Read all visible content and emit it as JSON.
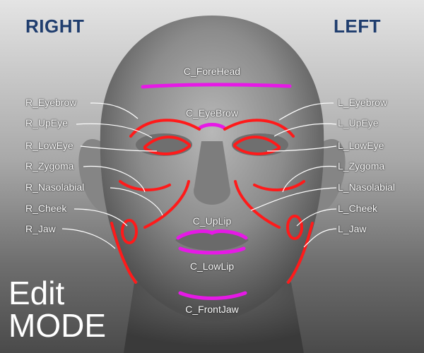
{
  "header": {
    "right": "RIGHT",
    "left": "LEFT"
  },
  "mode": {
    "line1": "Edit",
    "line2": "MODE"
  },
  "labels": {
    "r_eyebrow": "R_Eyebrow",
    "r_upeye": "R_UpEye",
    "r_loweye": "R_LowEye",
    "r_zygoma": "R_Zygoma",
    "r_nasolabial": "R_Nasolabial",
    "r_cheek": "R_Cheek",
    "r_jaw": "R_Jaw",
    "l_eyebrow": "L_Eyebrow",
    "l_upeye": "L_UpEye",
    "l_loweye": "L_LowEye",
    "l_zygoma": "L_Zygoma",
    "l_nasolabial": "L_Nasolabial",
    "l_cheek": "L_Cheek",
    "l_jaw": "L_Jaw",
    "c_forehead": "C_ForeHead",
    "c_eyebrow": "C_EyeBrow",
    "c_uplip": "C_UpLip",
    "c_lowlip": "C_LowLip",
    "c_frontjaw": "C_FrontJaw"
  },
  "colors": {
    "side_controls": "#ff1a1a",
    "center_controls": "#e619e6",
    "title": "#1f3d6e"
  }
}
